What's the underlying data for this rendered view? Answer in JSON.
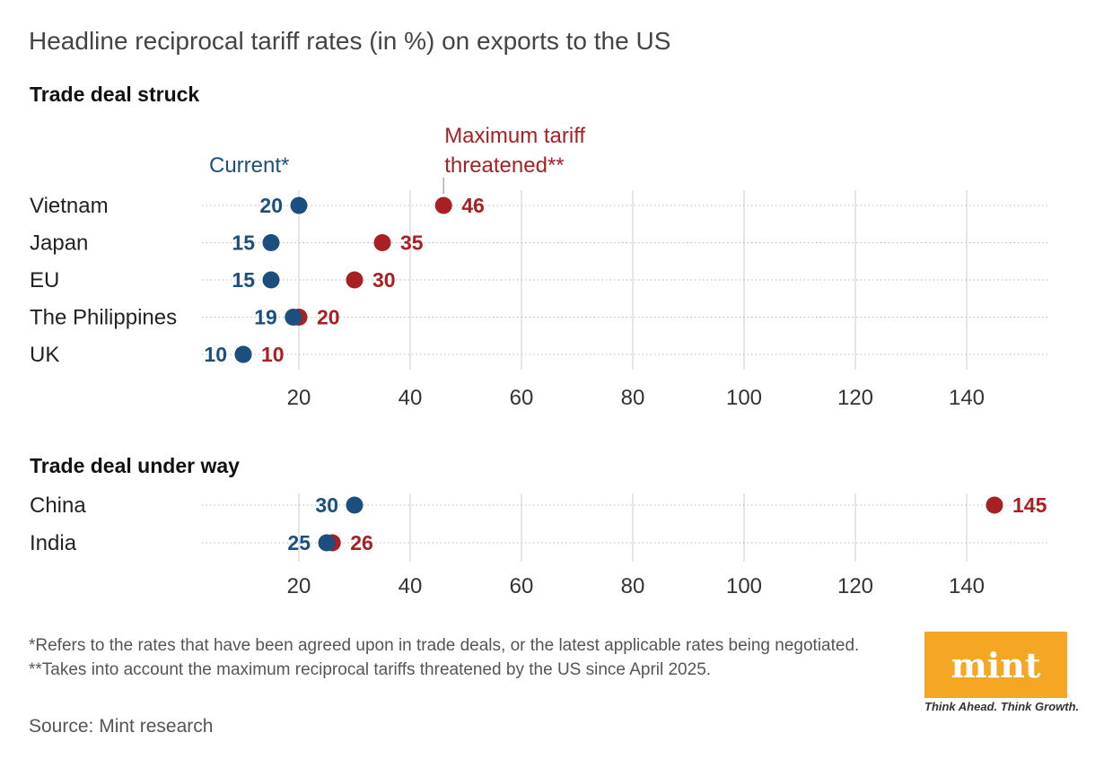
{
  "header": {
    "title": "Headline reciprocal tariff rates (in %) on exports to the US"
  },
  "colors": {
    "current": "#1b4f7e",
    "maximum": "#a81f24",
    "grid": "#dddddd"
  },
  "chart_data": [
    {
      "type": "dumbbell",
      "title": "Trade deal struck",
      "legend": {
        "current": "Current*",
        "maximum_line1": "Maximum tariff",
        "maximum_line2": "threatened**"
      },
      "categories": [
        "Vietnam",
        "Japan",
        "EU",
        "The Philippines",
        "UK"
      ],
      "series": [
        {
          "name": "Current*",
          "values": [
            20,
            15,
            15,
            19,
            10
          ]
        },
        {
          "name": "Maximum tariff threatened**",
          "values": [
            46,
            35,
            30,
            20,
            10
          ]
        }
      ],
      "xticks": [
        20,
        40,
        60,
        80,
        100,
        120,
        140
      ],
      "xlim": [
        0,
        150
      ],
      "grid": true
    },
    {
      "type": "dumbbell",
      "title": "Trade deal under way",
      "categories": [
        "China",
        "India"
      ],
      "series": [
        {
          "name": "Current*",
          "values": [
            30,
            25
          ]
        },
        {
          "name": "Maximum tariff threatened**",
          "values": [
            145,
            26
          ]
        }
      ],
      "xticks": [
        20,
        40,
        60,
        80,
        100,
        120,
        140
      ],
      "xlim": [
        0,
        150
      ],
      "grid": true
    }
  ],
  "footnote": "*Refers to the rates that have been agreed upon in trade deals, or the latest applicable rates being negotiated. **Takes into account the maximum reciprocal tariffs threatened by the US since April 2025.",
  "source": "Source: Mint research",
  "logo": {
    "text": "mint",
    "tagline": "Think Ahead. Think Growth."
  }
}
